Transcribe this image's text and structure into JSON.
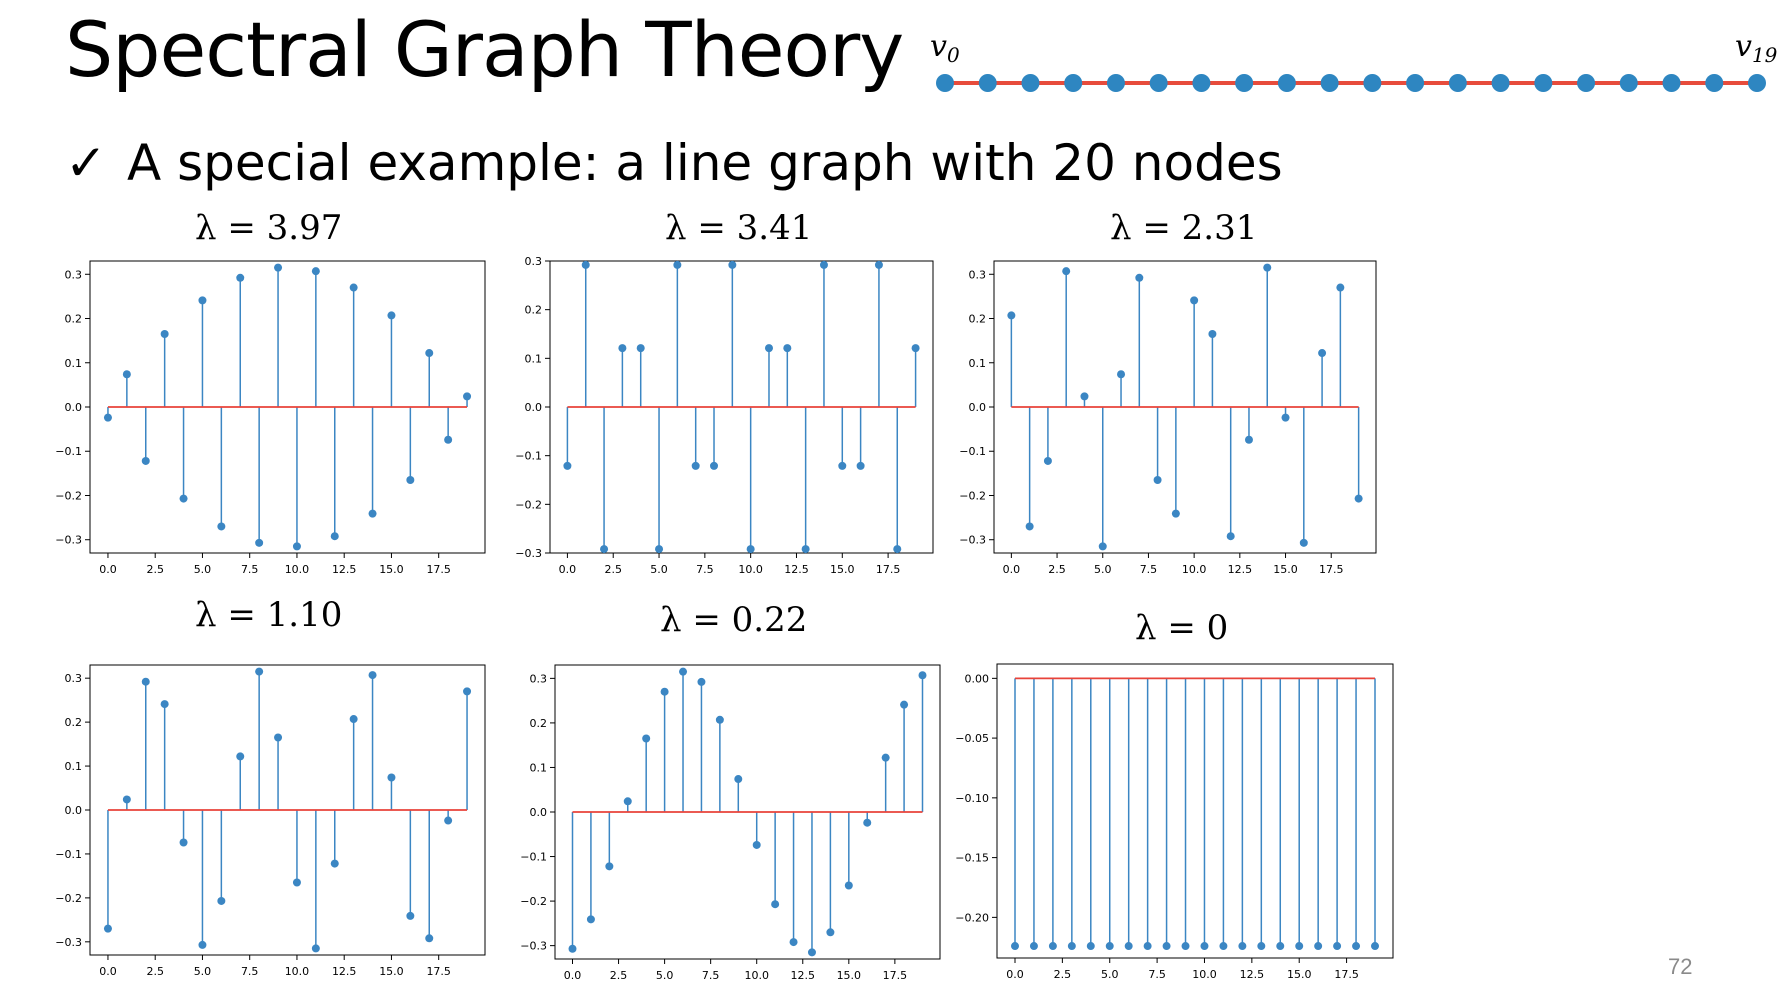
{
  "slide": {
    "title": "Spectral Graph Theory",
    "bullet_mark": "✓",
    "bullet_text": "A special example: a line graph with 20 nodes",
    "page_number": "72"
  },
  "line_graph": {
    "label_first": "v",
    "label_first_sub": "0",
    "label_last": "v",
    "label_last_sub": "19",
    "node_count": 20,
    "node_color": "#2e86c1",
    "edge_color": "#e74c3c"
  },
  "chart_data": [
    {
      "type": "stem",
      "title": "λ = 3.97",
      "xticks": [
        "0.0",
        "2.5",
        "5.0",
        "7.5",
        "10.0",
        "12.5",
        "15.0",
        "17.5"
      ],
      "yticks": [
        "0.3",
        "0.2",
        "0.1",
        "0.0",
        "−0.1",
        "−0.2",
        "−0.3"
      ],
      "ylim": [
        -0.33,
        0.33
      ],
      "x": [
        0,
        1,
        2,
        3,
        4,
        5,
        6,
        7,
        8,
        9,
        10,
        11,
        12,
        13,
        14,
        15,
        16,
        17,
        18,
        19
      ],
      "values": [
        -0.024,
        0.074,
        -0.122,
        0.165,
        -0.207,
        0.241,
        -0.27,
        0.292,
        -0.307,
        0.315,
        -0.315,
        0.307,
        -0.292,
        0.27,
        -0.241,
        0.207,
        -0.165,
        0.122,
        -0.074,
        0.024
      ]
    },
    {
      "type": "stem",
      "title": "λ = 3.41",
      "xticks": [
        "0.0",
        "2.5",
        "5.0",
        "7.5",
        "10.0",
        "12.5",
        "15.0",
        "17.5"
      ],
      "yticks": [
        "0.3",
        "0.2",
        "0.1",
        "0.0",
        "−0.1",
        "−0.2",
        "−0.3"
      ],
      "ylim": [
        -0.3,
        0.3
      ],
      "x": [
        0,
        1,
        2,
        3,
        4,
        5,
        6,
        7,
        8,
        9,
        10,
        11,
        12,
        13,
        14,
        15,
        16,
        17,
        18,
        19
      ],
      "values": [
        -0.121,
        0.292,
        -0.292,
        0.121,
        0.121,
        -0.292,
        0.292,
        -0.121,
        -0.121,
        0.292,
        -0.292,
        0.121,
        0.121,
        -0.292,
        0.292,
        -0.121,
        -0.121,
        0.292,
        -0.292,
        0.121
      ]
    },
    {
      "type": "stem",
      "title": "λ = 2.31",
      "xticks": [
        "0.0",
        "2.5",
        "5.0",
        "7.5",
        "10.0",
        "12.5",
        "15.0",
        "17.5"
      ],
      "yticks": [
        "0.3",
        "0.2",
        "0.1",
        "0.0",
        "−0.1",
        "−0.2",
        "−0.3"
      ],
      "ylim": [
        -0.33,
        0.33
      ],
      "x": [
        0,
        1,
        2,
        3,
        4,
        5,
        6,
        7,
        8,
        9,
        10,
        11,
        12,
        13,
        14,
        15,
        16,
        17,
        18,
        19
      ],
      "values": [
        0.207,
        -0.27,
        -0.122,
        0.307,
        0.024,
        -0.315,
        0.074,
        0.292,
        -0.165,
        -0.241,
        0.241,
        0.165,
        -0.292,
        -0.074,
        0.315,
        -0.024,
        -0.307,
        0.122,
        0.27,
        -0.207
      ]
    },
    {
      "type": "stem",
      "title": "λ = 1.10",
      "xticks": [
        "0.0",
        "2.5",
        "5.0",
        "7.5",
        "10.0",
        "12.5",
        "15.0",
        "17.5"
      ],
      "yticks": [
        "0.3",
        "0.2",
        "0.1",
        "0.0",
        "−0.1",
        "−0.2",
        "−0.3"
      ],
      "ylim": [
        -0.33,
        0.33
      ],
      "x": [
        0,
        1,
        2,
        3,
        4,
        5,
        6,
        7,
        8,
        9,
        10,
        11,
        12,
        13,
        14,
        15,
        16,
        17,
        18,
        19
      ],
      "values": [
        -0.27,
        0.024,
        0.292,
        0.241,
        -0.074,
        -0.307,
        -0.207,
        0.122,
        0.315,
        0.165,
        -0.165,
        -0.315,
        -0.122,
        0.207,
        0.307,
        0.074,
        -0.241,
        -0.292,
        -0.024,
        0.27
      ]
    },
    {
      "type": "stem",
      "title": "λ = 0.22",
      "xticks": [
        "0.0",
        "2.5",
        "5.0",
        "7.5",
        "10.0",
        "12.5",
        "15.0",
        "17.5"
      ],
      "yticks": [
        "0.3",
        "0.2",
        "0.1",
        "0.0",
        "−0.1",
        "−0.2",
        "−0.3"
      ],
      "ylim": [
        -0.33,
        0.33
      ],
      "x": [
        0,
        1,
        2,
        3,
        4,
        5,
        6,
        7,
        8,
        9,
        10,
        11,
        12,
        13,
        14,
        15,
        16,
        17,
        18,
        19
      ],
      "values": [
        -0.307,
        -0.241,
        -0.122,
        0.024,
        0.165,
        0.27,
        0.315,
        0.292,
        0.207,
        0.074,
        -0.074,
        -0.207,
        -0.292,
        -0.315,
        -0.27,
        -0.165,
        -0.024,
        0.122,
        0.241,
        0.307
      ]
    },
    {
      "type": "stem",
      "title": "λ = 0",
      "xticks": [
        "0.0",
        "2.5",
        "5.0",
        "7.5",
        "10.0",
        "12.5",
        "15.0",
        "17.5"
      ],
      "yticks": [
        "0.00",
        "−0.05",
        "−0.10",
        "−0.15",
        "−0.20"
      ],
      "ytick_values": [
        0,
        -0.05,
        -0.1,
        -0.15,
        -0.2
      ],
      "ylim": [
        -0.234,
        0.012
      ],
      "x": [
        0,
        1,
        2,
        3,
        4,
        5,
        6,
        7,
        8,
        9,
        10,
        11,
        12,
        13,
        14,
        15,
        16,
        17,
        18,
        19
      ],
      "values": [
        -0.224,
        -0.224,
        -0.224,
        -0.224,
        -0.224,
        -0.224,
        -0.224,
        -0.224,
        -0.224,
        -0.224,
        -0.224,
        -0.224,
        -0.224,
        -0.224,
        -0.224,
        -0.224,
        -0.224,
        -0.224,
        -0.224,
        -0.224
      ]
    }
  ],
  "style": {
    "stem_color": "#3b86c3",
    "baseline_color": "#e8433a"
  }
}
